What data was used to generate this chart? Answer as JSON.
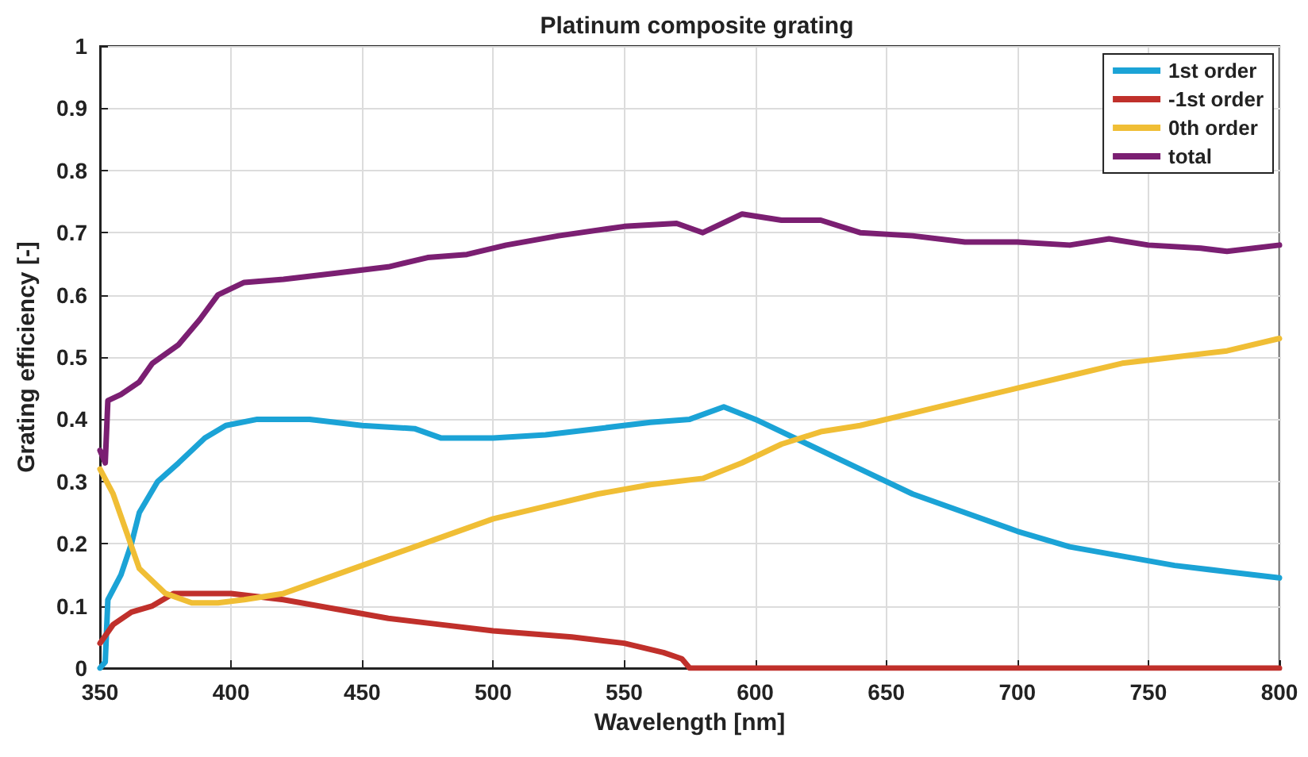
{
  "chart_data": {
    "type": "line",
    "title": "Platinum composite grating",
    "xlabel": "Wavelength [nm]",
    "ylabel": "Grating efficiency [-]",
    "xlim": [
      350,
      800
    ],
    "xticks": [
      350,
      400,
      450,
      500,
      550,
      600,
      650,
      700,
      750,
      800
    ],
    "ylim": [
      0,
      1
    ],
    "yticks": [
      0,
      0.1,
      0.2,
      0.3,
      0.4,
      0.5,
      0.6,
      0.7,
      0.8,
      0.9,
      1
    ],
    "grid": true,
    "legend": "top right",
    "marker": "none",
    "line_style": "solid",
    "series": [
      {
        "name": "1st order",
        "color": "#1ba3d6",
        "x": [
          350,
          352,
          353,
          358,
          362,
          365,
          372,
          380,
          390,
          398,
          410,
          430,
          450,
          470,
          480,
          500,
          520,
          540,
          560,
          575,
          588,
          600,
          620,
          640,
          660,
          680,
          700,
          720,
          740,
          760,
          780,
          800
        ],
        "values": [
          0,
          0.01,
          0.11,
          0.15,
          0.2,
          0.25,
          0.3,
          0.33,
          0.37,
          0.39,
          0.4,
          0.4,
          0.39,
          0.385,
          0.37,
          0.37,
          0.375,
          0.385,
          0.395,
          0.4,
          0.42,
          0.4,
          0.36,
          0.32,
          0.28,
          0.25,
          0.22,
          0.195,
          0.18,
          0.165,
          0.155,
          0.145
        ]
      },
      {
        "name": "-1st order",
        "color": "#c0302b",
        "x": [
          350,
          355,
          362,
          370,
          378,
          390,
          400,
          420,
          440,
          460,
          480,
          500,
          530,
          550,
          565,
          572,
          575,
          800
        ],
        "values": [
          0.04,
          0.07,
          0.09,
          0.1,
          0.12,
          0.12,
          0.12,
          0.11,
          0.095,
          0.08,
          0.07,
          0.06,
          0.05,
          0.04,
          0.025,
          0.015,
          0,
          0
        ]
      },
      {
        "name": "0th order",
        "color": "#f0be35",
        "x": [
          350,
          355,
          360,
          365,
          375,
          385,
          395,
          405,
          420,
          440,
          460,
          480,
          500,
          520,
          540,
          560,
          580,
          595,
          610,
          625,
          640,
          660,
          680,
          700,
          720,
          740,
          760,
          780,
          800
        ],
        "values": [
          0.32,
          0.28,
          0.22,
          0.16,
          0.12,
          0.105,
          0.105,
          0.11,
          0.12,
          0.15,
          0.18,
          0.21,
          0.24,
          0.26,
          0.28,
          0.295,
          0.305,
          0.33,
          0.36,
          0.38,
          0.39,
          0.41,
          0.43,
          0.45,
          0.47,
          0.49,
          0.5,
          0.51,
          0.53
        ]
      },
      {
        "name": "total",
        "color": "#7b1f72",
        "x": [
          350,
          352,
          353,
          358,
          365,
          370,
          380,
          388,
          395,
          405,
          420,
          440,
          460,
          475,
          490,
          505,
          525,
          550,
          570,
          580,
          595,
          610,
          625,
          640,
          660,
          680,
          700,
          720,
          735,
          750,
          770,
          780,
          800
        ],
        "values": [
          0.35,
          0.33,
          0.43,
          0.44,
          0.46,
          0.49,
          0.52,
          0.56,
          0.6,
          0.62,
          0.625,
          0.635,
          0.645,
          0.66,
          0.665,
          0.68,
          0.695,
          0.71,
          0.715,
          0.7,
          0.73,
          0.72,
          0.72,
          0.7,
          0.695,
          0.685,
          0.685,
          0.68,
          0.69,
          0.68,
          0.675,
          0.67,
          0.68
        ]
      }
    ]
  }
}
